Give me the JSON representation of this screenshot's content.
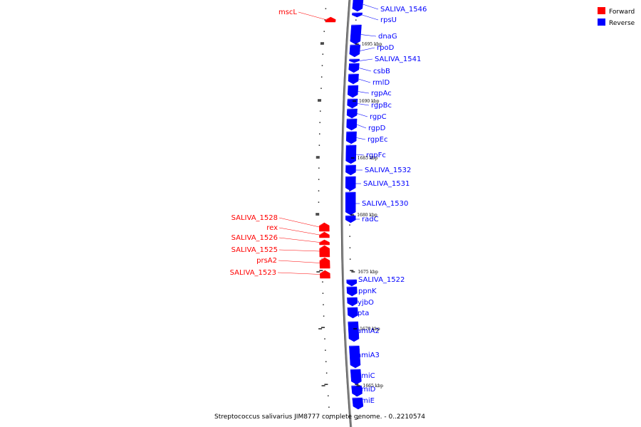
{
  "caption": "Streptococcus salivarius JIM8777 complete genome. - 0..2210574",
  "legend": [
    {
      "label": "Forward",
      "color": "#ff0000"
    },
    {
      "label": "Reverse",
      "color": "#0000ff"
    }
  ],
  "colors": {
    "forward": "#ff0000",
    "reverse": "#0000ff",
    "backbone": "#888888"
  },
  "kbp_markers": [
    {
      "label": "1695 kbp",
      "kbp": 1695
    },
    {
      "label": "1690 kbp",
      "kbp": 1690
    },
    {
      "label": "1685 kbp",
      "kbp": 1685
    },
    {
      "label": "1680 kbp",
      "kbp": 1680
    },
    {
      "label": "1675 kbp",
      "kbp": 1675
    },
    {
      "label": "1670 kbp",
      "kbp": 1670
    },
    {
      "label": "1665 kbp",
      "kbp": 1665
    }
  ],
  "genes": [
    {
      "name": "SALIVA_1546",
      "strand": "reverse"
    },
    {
      "name": "rpsU",
      "strand": "reverse"
    },
    {
      "name": "mscL",
      "strand": "forward"
    },
    {
      "name": "dnaG",
      "strand": "reverse"
    },
    {
      "name": "rpoD",
      "strand": "reverse"
    },
    {
      "name": "SALIVA_1541",
      "strand": "reverse"
    },
    {
      "name": "csbB",
      "strand": "reverse"
    },
    {
      "name": "rmlD",
      "strand": "reverse"
    },
    {
      "name": "rgpAc",
      "strand": "reverse"
    },
    {
      "name": "rgpBc",
      "strand": "reverse"
    },
    {
      "name": "rgpC",
      "strand": "reverse"
    },
    {
      "name": "rgpD",
      "strand": "reverse"
    },
    {
      "name": "rgpEc",
      "strand": "reverse"
    },
    {
      "name": "rgpFc",
      "strand": "reverse"
    },
    {
      "name": "SALIVA_1532",
      "strand": "reverse"
    },
    {
      "name": "SALIVA_1531",
      "strand": "reverse"
    },
    {
      "name": "SALIVA_1530",
      "strand": "reverse"
    },
    {
      "name": "radC",
      "strand": "reverse"
    },
    {
      "name": "SALIVA_1528",
      "strand": "forward"
    },
    {
      "name": "rex",
      "strand": "forward"
    },
    {
      "name": "SALIVA_1526",
      "strand": "forward"
    },
    {
      "name": "SALIVA_1525",
      "strand": "forward"
    },
    {
      "name": "prsA2",
      "strand": "forward"
    },
    {
      "name": "SALIVA_1523",
      "strand": "forward"
    },
    {
      "name": "SALIVA_1522",
      "strand": "reverse"
    },
    {
      "name": "ppnK",
      "strand": "reverse"
    },
    {
      "name": "yjbO",
      "strand": "reverse"
    },
    {
      "name": "pta",
      "strand": "reverse"
    },
    {
      "name": "amiA2",
      "strand": "reverse"
    },
    {
      "name": "amiA3",
      "strand": "reverse"
    },
    {
      "name": "amiC",
      "strand": "reverse"
    },
    {
      "name": "amiD",
      "strand": "reverse"
    },
    {
      "name": "amiE",
      "strand": "reverse"
    }
  ]
}
